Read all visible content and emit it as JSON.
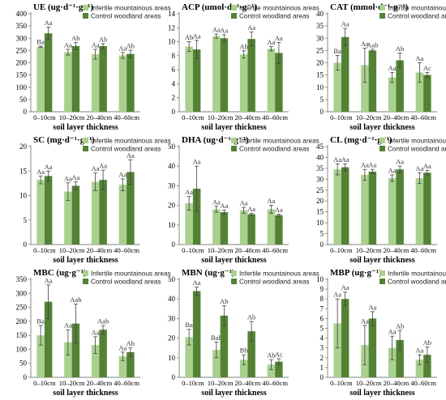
{
  "colors": {
    "infertile": "#a9d18e",
    "control": "#548235",
    "axis": "#7f7f7f",
    "error": "#404040"
  },
  "chart_data": [
    {
      "type": "bar",
      "title": "UE (ug·d⁻¹·g⁻¹)",
      "xlabel": "soil layer thickness",
      "categories": [
        "0–10cm",
        "10–20cm",
        "20–40cm",
        "40–60cm"
      ],
      "ylim": [
        0,
        400
      ],
      "ytick_step": 50,
      "series": [
        {
          "name": "Infertile mountainous areas",
          "values": [
            265,
            243,
            235,
            230
          ],
          "errors": [
            3,
            12,
            20,
            12
          ],
          "labels": [
            "Ba",
            "Aa",
            "Aa",
            "Aa"
          ]
        },
        {
          "name": "Control woodland areas",
          "values": [
            320,
            268,
            268,
            236
          ],
          "errors": [
            25,
            15,
            10,
            15
          ],
          "labels": [
            "Aa",
            "Ab",
            "Ab",
            "Ab"
          ]
        }
      ]
    },
    {
      "type": "bar",
      "title": "ACP (umol·d⁻¹·g⁻¹)",
      "xlabel": "soil layer thickness",
      "categories": [
        "0–10cm",
        "10–20cm",
        "20–40cm",
        "40–60cm"
      ],
      "ylim": [
        0,
        14
      ],
      "ytick_step": 2,
      "series": [
        {
          "name": "Infertile mountainous areas",
          "values": [
            9.3,
            10.8,
            8.2,
            9.0
          ],
          "errors": [
            0.7,
            0.3,
            0.5,
            0.3
          ],
          "labels": [
            "Ab",
            "Aa",
            "Ab",
            "Aa"
          ]
        },
        {
          "name": "Control woodland areas",
          "values": [
            8.9,
            10.5,
            10.4,
            8.4
          ],
          "errors": [
            1.3,
            0.5,
            1.0,
            1.5
          ],
          "labels": [
            "Aa",
            "Aa",
            "Aa",
            "Aa"
          ]
        }
      ]
    },
    {
      "type": "bar",
      "title": "CAT (mmol·d⁻¹·g⁻¹)",
      "xlabel": "soil layer thickness",
      "categories": [
        "0–10cm",
        "10–20cm",
        "20–40cm",
        "40–60cm"
      ],
      "ylim": [
        0,
        40
      ],
      "ytick_step": 5,
      "series": [
        {
          "name": "Infertile mountainous areas",
          "values": [
            20,
            19,
            14,
            16
          ],
          "errors": [
            3,
            7,
            2,
            4
          ],
          "labels": [
            "Ba",
            "Aa",
            "Aa",
            "Aa"
          ]
        },
        {
          "name": "Control woodland areas",
          "values": [
            30.5,
            25,
            21,
            15
          ],
          "errors": [
            3.5,
            0.5,
            3,
            1
          ],
          "labels": [
            "Aa",
            "Aab",
            "Ab",
            "Ac"
          ]
        }
      ]
    },
    {
      "type": "bar",
      "title": "SC (mg·d⁻¹·g⁻¹)",
      "xlabel": "soil layer thickness",
      "categories": [
        "0–10cm",
        "10–20cm",
        "20–40cm",
        "40–60cm"
      ],
      "ylim": [
        0,
        20
      ],
      "ytick_step": 5,
      "series": [
        {
          "name": "Infertile mountainous areas",
          "values": [
            13.2,
            10.8,
            12.8,
            12.2
          ],
          "errors": [
            0.8,
            1.8,
            1.8,
            1.2
          ],
          "labels": [
            "Aa",
            "Aa",
            "Aa",
            "Aa"
          ]
        },
        {
          "name": "Control woodland areas",
          "values": [
            14.0,
            12.0,
            13.2,
            14.8
          ],
          "errors": [
            1.0,
            0.8,
            2.0,
            2.5
          ],
          "labels": [
            "Aa",
            "Aa",
            "Aa",
            "Aa"
          ]
        }
      ]
    },
    {
      "type": "bar",
      "title": "DHA (ug·d⁻¹·g⁻¹)",
      "xlabel": "soil layer thickness",
      "categories": [
        "0–10cm",
        "10–20cm",
        "20–40cm",
        "40–60cm"
      ],
      "ylim": [
        0,
        50
      ],
      "ytick_step": 10,
      "series": [
        {
          "name": "Infertile mountainous areas",
          "values": [
            21,
            18,
            17.5,
            18
          ],
          "errors": [
            3.5,
            1.5,
            1.5,
            2.0
          ],
          "labels": [
            "Aa",
            "Aa",
            "Aa",
            "Aa"
          ]
        },
        {
          "name": "Control woodland areas",
          "values": [
            28.5,
            16.5,
            15.5,
            15
          ],
          "errors": [
            11.5,
            1.0,
            0.5,
            0.5
          ],
          "labels": [
            "Aa",
            "Aa",
            "Aa",
            "Aa"
          ]
        }
      ]
    },
    {
      "type": "bar",
      "title": "CL (mg·d⁻¹·g⁻¹)",
      "xlabel": "soil layer thickness",
      "categories": [
        "0–10cm",
        "10–20cm",
        "20–40cm",
        "40–60cm"
      ],
      "ylim": [
        0,
        45
      ],
      "ytick_step": 5,
      "series": [
        {
          "name": "Infertile mountainous areas",
          "values": [
            34.5,
            32,
            30.5,
            30.5
          ],
          "errors": [
            2.5,
            2.5,
            1.5,
            2.5
          ],
          "labels": [
            "Aa",
            "Aa",
            "Aa",
            "Aa"
          ]
        },
        {
          "name": "Control woodland areas",
          "values": [
            35.5,
            33.5,
            34.5,
            33
          ],
          "errors": [
            1.5,
            1.0,
            1.5,
            1.0
          ],
          "labels": [
            "Aa",
            "Aa",
            "Aa",
            "Aa"
          ]
        }
      ]
    },
    {
      "type": "bar",
      "title": "MBC (ug·g⁻¹)",
      "xlabel": "soil layer thickness",
      "categories": [
        "0–10cm",
        "10–20cm",
        "20–40cm",
        "40–60cm"
      ],
      "ylim": [
        0,
        350
      ],
      "ytick_step": 50,
      "series": [
        {
          "name": "Infertile mountainous areas",
          "values": [
            150,
            125,
            115,
            75
          ],
          "errors": [
            35,
            45,
            30,
            15
          ],
          "labels": [
            "Ba",
            "Aa",
            "Aa",
            "Aa"
          ]
        },
        {
          "name": "Control woodland areas",
          "values": [
            270,
            192,
            170,
            90
          ],
          "errors": [
            60,
            70,
            15,
            15
          ],
          "labels": [
            "Aa",
            "Aab",
            "Aab",
            "Ab"
          ]
        }
      ]
    },
    {
      "type": "bar",
      "title": "MBN (ug·g⁻¹)",
      "xlabel": "soil layer thickness",
      "categories": [
        "0–10cm",
        "10–20cm",
        "20–40cm",
        "40–60cm"
      ],
      "ylim": [
        0,
        50
      ],
      "ytick_step": 10,
      "series": [
        {
          "name": "Infertile mountainous areas",
          "values": [
            20.5,
            14,
            9,
            6.5
          ],
          "errors": [
            4.0,
            4.0,
            2.5,
            2.5
          ],
          "labels": [
            "Ba",
            "Bab",
            "Bb",
            "Ab"
          ]
        },
        {
          "name": "Control woodland areas",
          "values": [
            44,
            31.5,
            23.5,
            8
          ],
          "errors": [
            2.0,
            5.0,
            5.0,
            1.5
          ],
          "labels": [
            "Aa",
            "Ab",
            "Ab",
            "Ac"
          ]
        }
      ]
    },
    {
      "type": "bar",
      "title": "MBP (ug·g⁻¹)",
      "xlabel": "soil layer thickness",
      "categories": [
        "0–10cm",
        "10–20cm",
        "20–40cm",
        "40–60cm"
      ],
      "ylim": [
        0,
        10
      ],
      "ytick_step": 1,
      "series": [
        {
          "name": "Infertile mountainous areas",
          "values": [
            5.5,
            3.3,
            3.0,
            1.8
          ],
          "errors": [
            2.5,
            2.0,
            1.2,
            0.5
          ],
          "labels": [
            "Aa",
            "Aa",
            "Aa",
            "Aa"
          ]
        },
        {
          "name": "Control woodland areas",
          "values": [
            8.0,
            6.0,
            3.8,
            2.3
          ],
          "errors": [
            0.7,
            0.7,
            1.0,
            0.8
          ],
          "labels": [
            "Aa",
            "Aa",
            "Ab",
            "Ab"
          ]
        }
      ]
    }
  ]
}
